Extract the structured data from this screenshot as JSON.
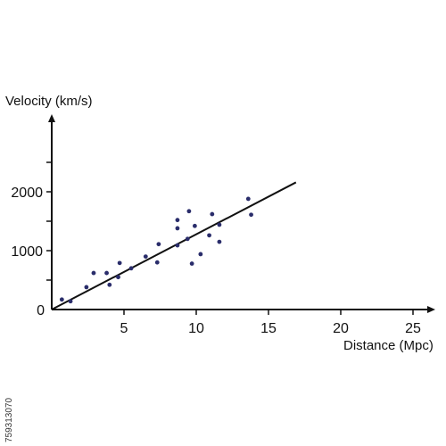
{
  "chart_data": {
    "type": "scatter",
    "title": "",
    "xlabel": "Distance (Mpc)",
    "ylabel": "Velocity (km/s)",
    "xlim": [
      0,
      29
    ],
    "ylim": [
      0,
      3300
    ],
    "x_ticks": [
      5,
      10,
      15,
      20,
      25
    ],
    "y_ticks": [
      0,
      1000,
      2000
    ],
    "y_minor_ticks": [
      500,
      1500,
      2500
    ],
    "grid": false,
    "legend": "none",
    "series": [
      {
        "points": [
          {
            "x": 0.7,
            "y": 170
          },
          {
            "x": 1.3,
            "y": 140
          },
          {
            "x": 2.4,
            "y": 380
          },
          {
            "x": 2.9,
            "y": 620
          },
          {
            "x": 3.8,
            "y": 620
          },
          {
            "x": 4.0,
            "y": 420
          },
          {
            "x": 4.6,
            "y": 550
          },
          {
            "x": 4.7,
            "y": 790
          },
          {
            "x": 5.5,
            "y": 700
          },
          {
            "x": 6.5,
            "y": 900
          },
          {
            "x": 7.3,
            "y": 800
          },
          {
            "x": 7.4,
            "y": 1110
          },
          {
            "x": 8.7,
            "y": 1090
          },
          {
            "x": 8.7,
            "y": 1380
          },
          {
            "x": 8.7,
            "y": 1520
          },
          {
            "x": 9.4,
            "y": 1200
          },
          {
            "x": 9.5,
            "y": 1670
          },
          {
            "x": 9.7,
            "y": 780
          },
          {
            "x": 9.9,
            "y": 1420
          },
          {
            "x": 10.3,
            "y": 940
          },
          {
            "x": 10.9,
            "y": 1260
          },
          {
            "x": 11.1,
            "y": 1620
          },
          {
            "x": 11.6,
            "y": 1150
          },
          {
            "x": 11.6,
            "y": 1440
          },
          {
            "x": 13.6,
            "y": 1880
          },
          {
            "x": 13.8,
            "y": 1610
          }
        ]
      }
    ],
    "trend_line": {
      "x": [
        0,
        16.9
      ],
      "y": [
        0,
        2160
      ]
    },
    "colors": {
      "points": "#2a2d6b",
      "line": "#111111",
      "axes": "#111111"
    }
  },
  "watermark": {
    "text": "759313070"
  }
}
